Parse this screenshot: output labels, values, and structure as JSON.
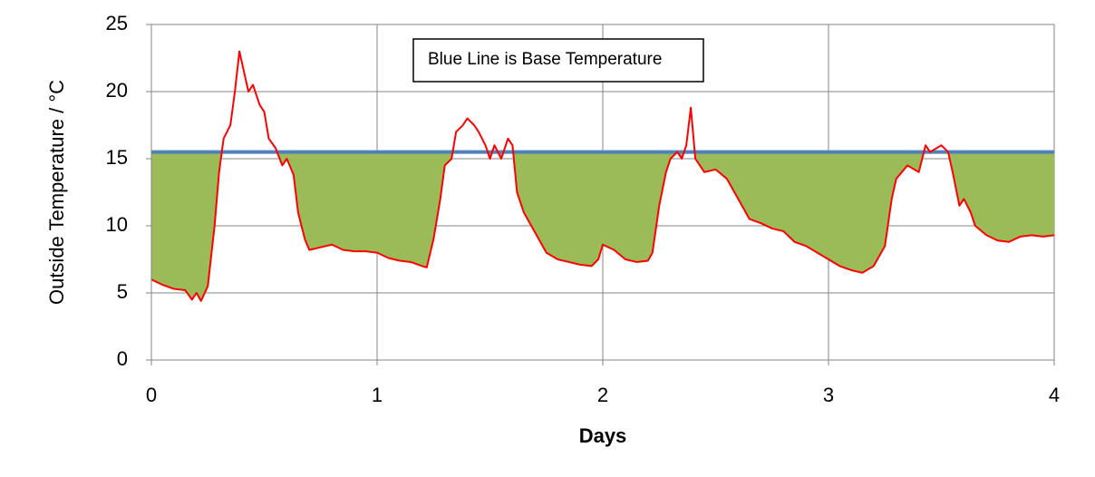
{
  "chart_data": {
    "type": "line",
    "annotation": "Blue Line is Base Temperature",
    "xlabel": "Days",
    "ylabel": "Outside Temperature / °C",
    "x": [
      0,
      0.05,
      0.1,
      0.15,
      0.18,
      0.2,
      0.22,
      0.25,
      0.28,
      0.3,
      0.32,
      0.35,
      0.37,
      0.39,
      0.41,
      0.43,
      0.45,
      0.48,
      0.5,
      0.52,
      0.55,
      0.58,
      0.6,
      0.63,
      0.65,
      0.68,
      0.7,
      0.75,
      0.8,
      0.85,
      0.9,
      0.95,
      1.0,
      1.05,
      1.1,
      1.15,
      1.2,
      1.22,
      1.25,
      1.28,
      1.3,
      1.33,
      1.35,
      1.38,
      1.4,
      1.43,
      1.45,
      1.48,
      1.5,
      1.52,
      1.55,
      1.58,
      1.6,
      1.62,
      1.65,
      1.7,
      1.75,
      1.8,
      1.85,
      1.9,
      1.95,
      1.98,
      2.0,
      2.05,
      2.1,
      2.15,
      2.2,
      2.22,
      2.25,
      2.28,
      2.3,
      2.33,
      2.35,
      2.37,
      2.39,
      2.41,
      2.45,
      2.5,
      2.55,
      2.6,
      2.65,
      2.7,
      2.75,
      2.8,
      2.85,
      2.9,
      2.95,
      3.0,
      3.05,
      3.1,
      3.15,
      3.2,
      3.25,
      3.28,
      3.3,
      3.35,
      3.4,
      3.43,
      3.45,
      3.5,
      3.53,
      3.55,
      3.58,
      3.6,
      3.63,
      3.65,
      3.7,
      3.75,
      3.8,
      3.85,
      3.9,
      3.95,
      4.0
    ],
    "series": [
      {
        "color": "#ff0000",
        "values": [
          6.0,
          5.6,
          5.3,
          5.2,
          4.5,
          5.0,
          4.4,
          5.5,
          10,
          14,
          16.5,
          17.5,
          20,
          23,
          21.5,
          20,
          20.5,
          19,
          18.5,
          16.5,
          15.8,
          14.5,
          15,
          13.8,
          11,
          9,
          8.2,
          8.4,
          8.6,
          8.2,
          8.1,
          8.1,
          8.0,
          7.6,
          7.4,
          7.3,
          7.0,
          6.9,
          9,
          12,
          14.5,
          15,
          17,
          17.5,
          18,
          17.5,
          17,
          16,
          15,
          16,
          15,
          16.5,
          16,
          12.5,
          11,
          9.5,
          8,
          7.5,
          7.3,
          7.1,
          7.0,
          7.5,
          8.6,
          8.2,
          7.5,
          7.3,
          7.4,
          8,
          11.5,
          14,
          15,
          15.5,
          15,
          16,
          18.8,
          15,
          14,
          14.2,
          13.5,
          12,
          10.5,
          10.2,
          9.8,
          9.6,
          8.8,
          8.5,
          8.0,
          7.5,
          7.0,
          6.7,
          6.5,
          7,
          8.5,
          12,
          13.5,
          14.5,
          14,
          16,
          15.5,
          16,
          15.5,
          14,
          11.5,
          12,
          11,
          10,
          9.3,
          8.9,
          8.8,
          9.2,
          9.3,
          9.2,
          9.3
        ]
      }
    ],
    "base_temperature": 15.5,
    "base_color": "#4f81bd",
    "fill_color": "#9bbb59",
    "xlim": [
      0,
      4
    ],
    "xticks": [
      0,
      1,
      2,
      3,
      4
    ],
    "ylim": [
      0,
      25
    ],
    "yticks": [
      0,
      5,
      10,
      15,
      20,
      25
    ],
    "grid": true
  }
}
